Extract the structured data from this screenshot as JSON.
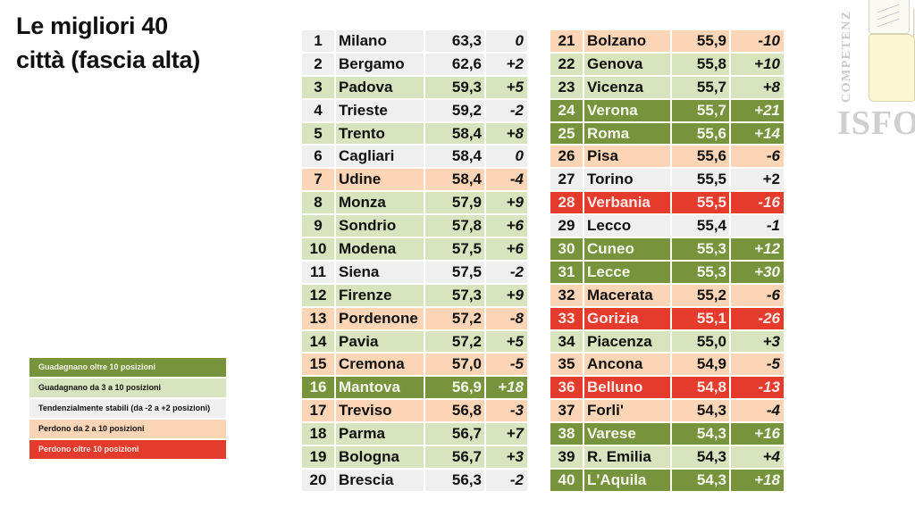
{
  "title": {
    "line1": "Le migliori 40",
    "line2": "città (fascia alta)"
  },
  "colors": {
    "gain_over_10": {
      "bg": "#77933C",
      "fg": "#F3F6EC"
    },
    "gain_3_10": {
      "bg": "#D7E4BD",
      "fg": "#111111"
    },
    "stable": {
      "bg": "#EFEFEF",
      "fg": "#111111"
    },
    "lose_2_10": {
      "bg": "#FBD5B5",
      "fg": "#111111"
    },
    "lose_over_10": {
      "bg": "#E53B2C",
      "fg": "#FBE9E7"
    }
  },
  "legend": {
    "items": [
      {
        "category": "gain_over_10",
        "label": "Guadagnano oltre 10 posizioni"
      },
      {
        "category": "gain_3_10",
        "label": "Guadagnano  da 3 a 10 posizioni"
      },
      {
        "category": "stable",
        "label": "Tendenzialmente stabili (da -2 a +2 posizioni)"
      },
      {
        "category": "lose_2_10",
        "label": "Perdono da 2 a 10 posizioni"
      },
      {
        "category": "lose_over_10",
        "label": "Perdono  oltre 10 posizioni"
      }
    ]
  },
  "tables": [
    {
      "rows": [
        {
          "rank": "1",
          "city": "Milano",
          "score": "63,3",
          "delta": "0",
          "category": "stable"
        },
        {
          "rank": "2",
          "city": "Bergamo",
          "score": "62,6",
          "delta": "+2",
          "category": "stable"
        },
        {
          "rank": "3",
          "city": "Padova",
          "score": "59,3",
          "delta": "+5",
          "category": "gain_3_10"
        },
        {
          "rank": "4",
          "city": "Trieste",
          "score": "59,2",
          "delta": "-2",
          "category": "stable"
        },
        {
          "rank": "5",
          "city": "Trento",
          "score": "58,4",
          "delta": "+8",
          "category": "gain_3_10"
        },
        {
          "rank": "6",
          "city": "Cagliari",
          "score": "58,4",
          "delta": "0",
          "category": "stable"
        },
        {
          "rank": "7",
          "city": "Udine",
          "score": "58,4",
          "delta": "-4",
          "category": "lose_2_10"
        },
        {
          "rank": "8",
          "city": "Monza",
          "score": "57,9",
          "delta": "+9",
          "category": "gain_3_10"
        },
        {
          "rank": "9",
          "city": "Sondrio",
          "score": "57,8",
          "delta": "+6",
          "category": "gain_3_10"
        },
        {
          "rank": "10",
          "city": "Modena",
          "score": "57,5",
          "delta": "+6",
          "category": "gain_3_10"
        },
        {
          "rank": "11",
          "city": "Siena",
          "score": "57,5",
          "delta": "-2",
          "category": "stable"
        },
        {
          "rank": "12",
          "city": "Firenze",
          "score": "57,3",
          "delta": "+9",
          "category": "gain_3_10"
        },
        {
          "rank": "13",
          "city": "Pordenone",
          "score": "57,2",
          "delta": "-8",
          "category": "lose_2_10"
        },
        {
          "rank": "14",
          "city": "Pavia",
          "score": "57,2",
          "delta": "+5",
          "category": "gain_3_10"
        },
        {
          "rank": "15",
          "city": "Cremona",
          "score": "57,0",
          "delta": "-5",
          "category": "lose_2_10"
        },
        {
          "rank": "16",
          "city": "Mantova",
          "score": "56,9",
          "delta": "+18",
          "category": "gain_over_10"
        },
        {
          "rank": "17",
          "city": "Treviso",
          "score": "56,8",
          "delta": "-3",
          "category": "lose_2_10"
        },
        {
          "rank": "18",
          "city": "Parma",
          "score": "56,7",
          "delta": "+7",
          "category": "gain_3_10"
        },
        {
          "rank": "19",
          "city": "Bologna",
          "score": "56,7",
          "delta": "+3",
          "category": "gain_3_10"
        },
        {
          "rank": "20",
          "city": "Brescia",
          "score": "56,3",
          "delta": "-2",
          "category": "stable"
        }
      ]
    },
    {
      "rows": [
        {
          "rank": "21",
          "city": "Bolzano",
          "score": "55,9",
          "delta": "-10",
          "category": "lose_2_10"
        },
        {
          "rank": "22",
          "city": "Genova",
          "score": "55,8",
          "delta": "+10",
          "category": "gain_3_10"
        },
        {
          "rank": "23",
          "city": "Vicenza",
          "score": "55,7",
          "delta": "+8",
          "category": "gain_3_10"
        },
        {
          "rank": "24",
          "city": "Verona",
          "score": "55,7",
          "delta": "+21",
          "category": "gain_over_10"
        },
        {
          "rank": "25",
          "city": "Roma",
          "score": "55,6",
          "delta": "+14",
          "category": "gain_over_10"
        },
        {
          "rank": "26",
          "city": "Pisa",
          "score": "55,6",
          "delta": "-6",
          "category": "lose_2_10"
        },
        {
          "rank": "27",
          "city": "Torino",
          "score": "55,5",
          "delta": "+2",
          "category": "stable",
          "upright": true
        },
        {
          "rank": "28",
          "city": "Verbania",
          "score": "55,5",
          "delta": "-16",
          "category": "lose_over_10"
        },
        {
          "rank": "29",
          "city": "Lecco",
          "score": "55,4",
          "delta": "-1",
          "category": "stable"
        },
        {
          "rank": "30",
          "city": "Cuneo",
          "score": "55,3",
          "delta": "+12",
          "category": "gain_over_10"
        },
        {
          "rank": "31",
          "city": "Lecce",
          "score": "55,3",
          "delta": "+30",
          "category": "gain_over_10"
        },
        {
          "rank": "32",
          "city": "Macerata",
          "score": "55,2",
          "delta": "-6",
          "category": "lose_2_10"
        },
        {
          "rank": "33",
          "city": "Gorizia",
          "score": "55,1",
          "delta": "-26",
          "category": "lose_over_10"
        },
        {
          "rank": "34",
          "city": "Piacenza",
          "score": "55,0",
          "delta": "+3",
          "category": "gain_3_10"
        },
        {
          "rank": "35",
          "city": "Ancona",
          "score": "54,9",
          "delta": "-5",
          "category": "lose_2_10"
        },
        {
          "rank": "36",
          "city": "Belluno",
          "score": "54,8",
          "delta": "-13",
          "category": "lose_over_10"
        },
        {
          "rank": "37",
          "city": "Forli'",
          "score": "54,3",
          "delta": "-4",
          "category": "lose_2_10"
        },
        {
          "rank": "38",
          "city": "Varese",
          "score": "54,3",
          "delta": "+16",
          "category": "gain_over_10"
        },
        {
          "rank": "39",
          "city": "R. Emilia",
          "score": "54,3",
          "delta": "+4",
          "category": "gain_3_10"
        },
        {
          "rank": "40",
          "city": "L'Aquila",
          "score": "54,3",
          "delta": "+18",
          "category": "gain_over_10"
        }
      ]
    }
  ],
  "logo": {
    "vertical_text": "COMPETENZ",
    "text": "ISFO"
  }
}
